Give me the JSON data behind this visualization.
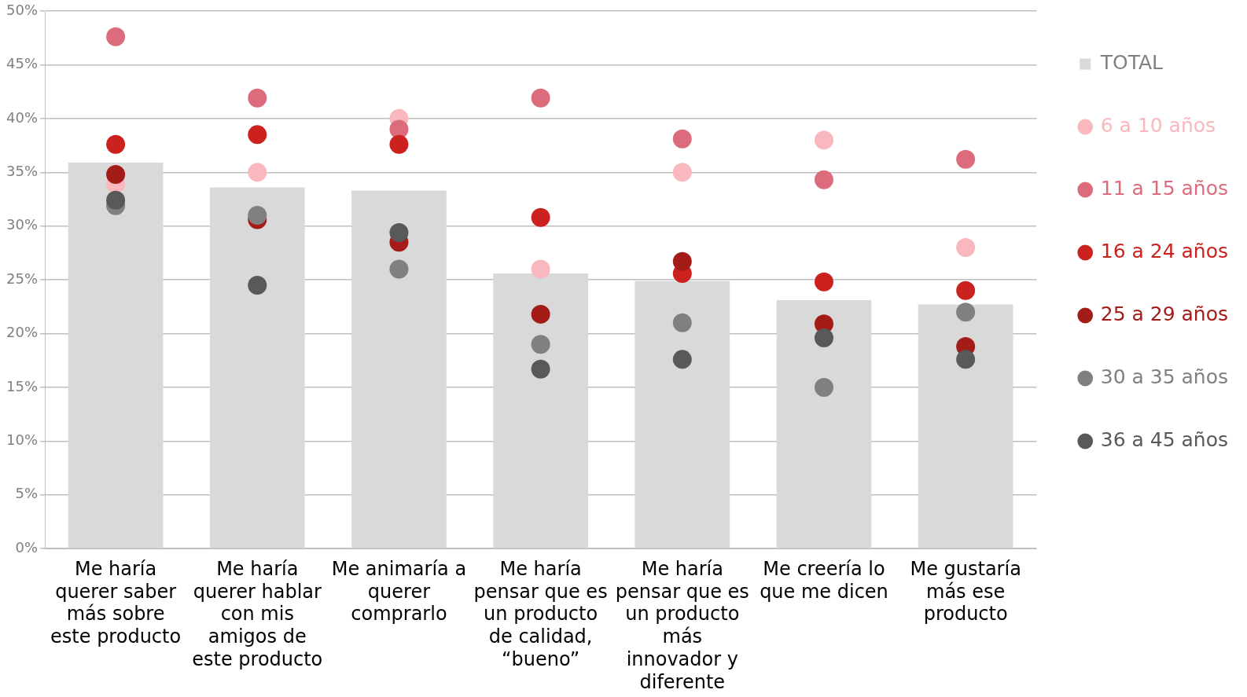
{
  "chart_data": {
    "type": "bar",
    "categories": [
      "Me haría querer saber más sobre este producto",
      "Me haría querer hablar con mis amigos de este producto",
      "Me animaría a querer comprarlo",
      "Me haría pensar que es un producto de calidad, “bueno”",
      "Me haría pensar que es un producto más innovador y diferente",
      "Me creería lo que me dicen",
      "Me gustaría más ese producto"
    ],
    "series": [
      {
        "name": "TOTAL",
        "color": "#d9d9d9",
        "values": [
          35.9,
          33.6,
          33.3,
          25.6,
          24.9,
          23.1,
          22.7
        ]
      },
      {
        "name": "6 a 10 años",
        "type": "scatter",
        "color": "#f9b8bd",
        "values": [
          33.9,
          35,
          40,
          26,
          35,
          38,
          28
        ]
      },
      {
        "name": "11 a 15 años",
        "type": "scatter",
        "color": "#dc6b7c",
        "values": [
          47.6,
          41.9,
          39,
          41.9,
          38.1,
          34.3,
          36.2
        ]
      },
      {
        "name": "16 a 24 años",
        "type": "scatter",
        "color": "#cc221f",
        "values": [
          37.6,
          38.5,
          37.6,
          30.8,
          25.6,
          24.8,
          24
        ]
      },
      {
        "name": "25 a 29 años",
        "type": "scatter",
        "color": "#a31c18",
        "values": [
          34.8,
          30.6,
          28.5,
          21.8,
          26.7,
          20.9,
          18.8
        ]
      },
      {
        "name": "30 a 35 años",
        "type": "scatter",
        "color": "#808080",
        "values": [
          31.9,
          31,
          26,
          19,
          21,
          15,
          22
        ]
      },
      {
        "name": "36 a 45 años",
        "type": "scatter",
        "color": "#595959",
        "values": [
          32.4,
          24.5,
          29.4,
          16.7,
          17.6,
          19.6,
          17.6
        ]
      }
    ],
    "ylim": [
      0,
      50
    ],
    "yticks": [
      {
        "value": 0,
        "label": "0%"
      },
      {
        "value": 5,
        "label": "5%"
      },
      {
        "value": 10,
        "label": "10%"
      },
      {
        "value": 15,
        "label": "15%"
      },
      {
        "value": 20,
        "label": "20%"
      },
      {
        "value": 25,
        "label": "25%"
      },
      {
        "value": 30,
        "label": "30%"
      },
      {
        "value": 35,
        "label": "35%"
      },
      {
        "value": 40,
        "label": "40%"
      },
      {
        "value": 45,
        "label": "45%"
      },
      {
        "value": 50,
        "label": "50%"
      }
    ],
    "grid": "y",
    "legend": "right",
    "marker": "circle"
  }
}
